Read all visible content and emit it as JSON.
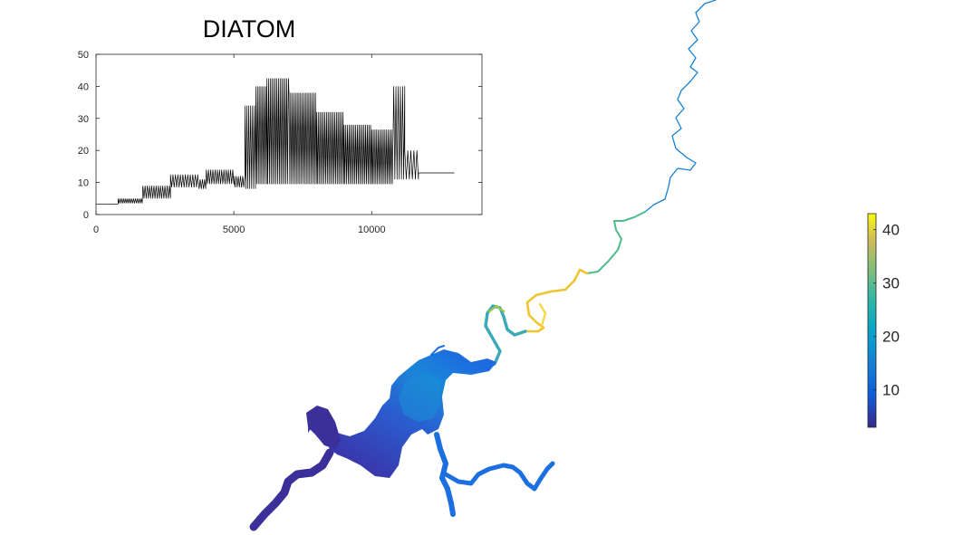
{
  "chart_data": [
    {
      "type": "line",
      "title": "DIATOM",
      "xlabel": "",
      "ylabel": "",
      "xlim": [
        0,
        14000
      ],
      "ylim": [
        0,
        50
      ],
      "xticks": [
        "0",
        "5000",
        "10000"
      ],
      "xtick_values": [
        0,
        5000,
        10000
      ],
      "yticks": [
        "0",
        "10",
        "20",
        "30",
        "40",
        "50"
      ],
      "ytick_values": [
        0,
        10,
        20,
        30,
        40,
        50
      ],
      "grid": false,
      "series": [
        {
          "color": "#000000",
          "segments": [
            {
              "x0": 0,
              "x1": 800,
              "low": 3.2,
              "high": 3.3,
              "period": 0
            },
            {
              "x0": 800,
              "x1": 1700,
              "low": 3.5,
              "high": 5.0,
              "period": 70
            },
            {
              "x0": 1700,
              "x1": 2700,
              "low": 5.0,
              "high": 9.0,
              "period": 80
            },
            {
              "x0": 2700,
              "x1": 3700,
              "low": 8.5,
              "high": 12.5,
              "period": 90
            },
            {
              "x0": 3700,
              "x1": 4000,
              "low": 8.0,
              "high": 11.0,
              "period": 80
            },
            {
              "x0": 4000,
              "x1": 5000,
              "low": 9.5,
              "high": 14.0,
              "period": 80
            },
            {
              "x0": 5000,
              "x1": 5400,
              "low": 8.5,
              "high": 12.0,
              "period": 80
            },
            {
              "x0": 5400,
              "x1": 5800,
              "low": 8.0,
              "high": 34.0,
              "period": 70
            },
            {
              "x0": 5800,
              "x1": 6200,
              "low": 9.5,
              "high": 40.0,
              "period": 60
            },
            {
              "x0": 6200,
              "x1": 7000,
              "low": 9.5,
              "high": 42.5,
              "period": 60
            },
            {
              "x0": 7000,
              "x1": 8000,
              "low": 9.5,
              "high": 38.0,
              "period": 60
            },
            {
              "x0": 8000,
              "x1": 9000,
              "low": 9.5,
              "high": 32.0,
              "period": 60
            },
            {
              "x0": 9000,
              "x1": 10000,
              "low": 9.5,
              "high": 28.0,
              "period": 60
            },
            {
              "x0": 10000,
              "x1": 10800,
              "low": 9.5,
              "high": 26.5,
              "period": 60
            },
            {
              "x0": 10800,
              "x1": 11200,
              "low": 11.0,
              "high": 40.0,
              "period": 80
            },
            {
              "x0": 11200,
              "x1": 11700,
              "low": 11.0,
              "high": 20.0,
              "period": 110
            },
            {
              "x0": 11700,
              "x1": 13000,
              "low": 13.0,
              "high": 13.0,
              "period": 0
            }
          ]
        }
      ]
    },
    {
      "type": "heatmap",
      "title": "",
      "colorbar": {
        "min": 3,
        "max": 43,
        "ticks": [
          "10",
          "20",
          "30",
          "40"
        ],
        "tick_values": [
          10,
          20,
          30,
          40
        ],
        "colormap": "parula"
      },
      "regions": [
        {
          "name": "upper-river",
          "value": 15
        },
        {
          "name": "river-bend-green",
          "value": 25
        },
        {
          "name": "river-bend-yellow",
          "value": 40
        },
        {
          "name": "lagoon-loop",
          "value": 16
        },
        {
          "name": "estuary-center",
          "value": 15
        },
        {
          "name": "estuary-body",
          "value": 11
        },
        {
          "name": "southwest-arm",
          "value": 5
        },
        {
          "name": "southeast-arm",
          "value": 10
        }
      ]
    }
  ]
}
